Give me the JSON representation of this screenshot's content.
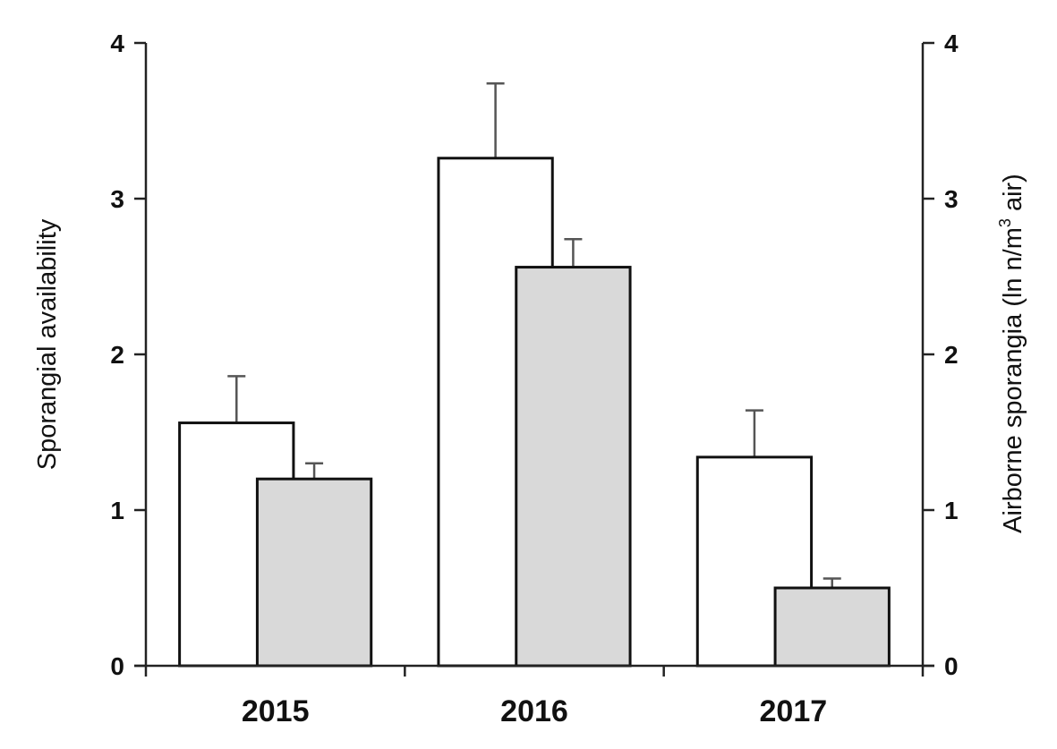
{
  "chart_data": {
    "type": "bar",
    "categories": [
      "2015",
      "2016",
      "2017"
    ],
    "series": [
      {
        "axis": "left",
        "color": "#ffffff",
        "values": [
          1.56,
          3.26,
          1.34
        ],
        "error": [
          0.3,
          0.48,
          0.3
        ]
      },
      {
        "axis": "right",
        "color": "#d9d9d9",
        "values": [
          1.2,
          2.56,
          0.5
        ],
        "error": [
          0.1,
          0.18,
          0.06
        ]
      }
    ],
    "ylabel": "Sporangial  availability",
    "ylabel_right_parts": [
      "Airborne sporangia  (ln n/m",
      "3",
      " air)"
    ],
    "ylim": [
      0,
      4
    ],
    "ylim_right": [
      0,
      4
    ],
    "yticks": [
      "0",
      "1",
      "2",
      "3",
      "4"
    ],
    "yticks_right": [
      "0",
      "1",
      "2",
      "3",
      "4"
    ],
    "grid": false,
    "legend": "none"
  }
}
